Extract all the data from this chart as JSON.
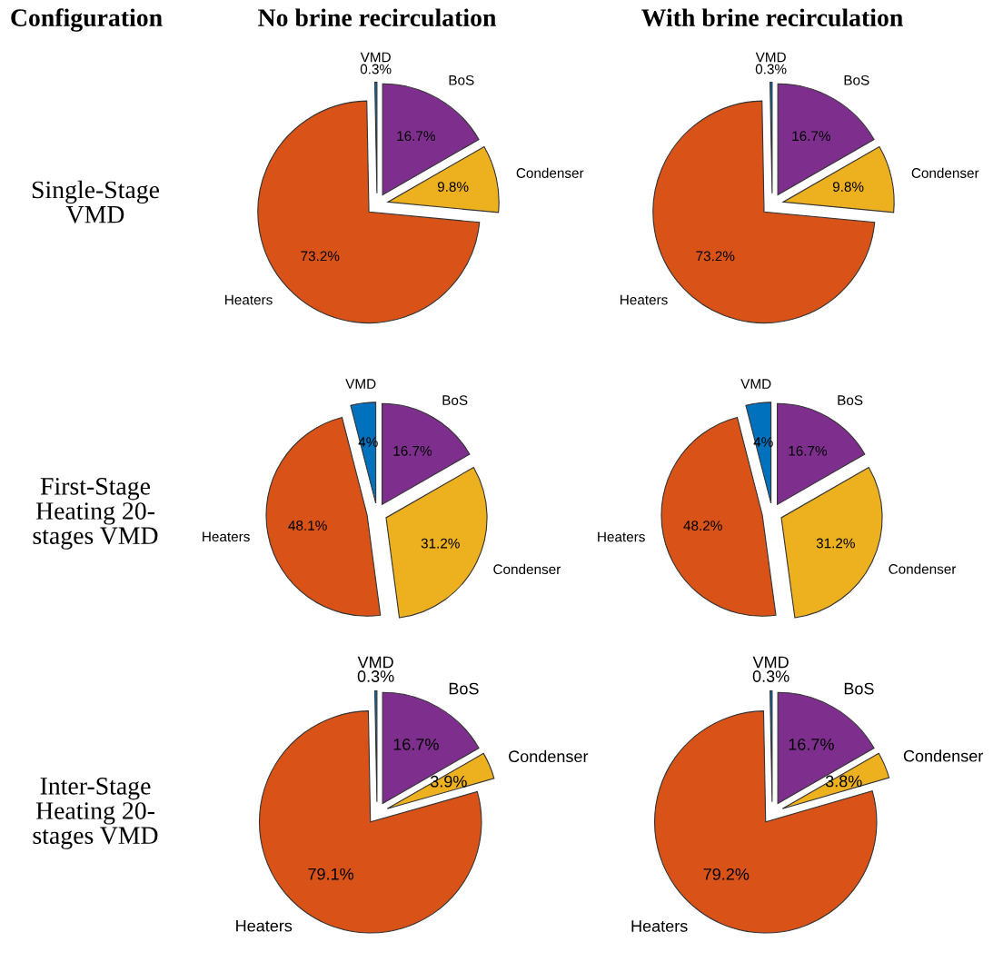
{
  "chart_data": [
    {
      "type": "pie",
      "title": "No brine recirculation",
      "ylabel": "Single-Stage\nVMD",
      "annotations": [
        "Configuration"
      ],
      "categories": [
        "VMD",
        "Heaters",
        "Condenser",
        "BoS"
      ],
      "values": [
        0.3,
        73.2,
        9.8,
        16.7
      ],
      "value_labels": [
        "0.3%",
        "73.2%",
        "9.8%",
        "16.7%"
      ],
      "colors": [
        "#0072bd",
        "#d95319",
        "#edb120",
        "#7e2f8e"
      ]
    },
    {
      "type": "pie",
      "title": "With brine recirculation",
      "categories": [
        "VMD",
        "Heaters",
        "Condenser",
        "BoS"
      ],
      "values": [
        0.3,
        73.2,
        9.8,
        16.7
      ],
      "value_labels": [
        "0.3%",
        "73.2%",
        "9.8%",
        "16.7%"
      ],
      "colors": [
        "#0072bd",
        "#d95319",
        "#edb120",
        "#7e2f8e"
      ]
    },
    {
      "type": "pie",
      "ylabel": "First-Stage\nHeating 20-\nstages VMD",
      "categories": [
        "VMD",
        "Heaters",
        "Condenser",
        "BoS"
      ],
      "values": [
        4,
        48.1,
        31.2,
        16.7
      ],
      "value_labels": [
        "4%",
        "48.1%",
        "31.2%",
        "16.7%"
      ],
      "colors": [
        "#0072bd",
        "#d95319",
        "#edb120",
        "#7e2f8e"
      ]
    },
    {
      "type": "pie",
      "categories": [
        "VMD",
        "Heaters",
        "Condenser",
        "BoS"
      ],
      "values": [
        4,
        48.2,
        31.2,
        16.7
      ],
      "value_labels": [
        "4%",
        "48.2%",
        "31.2%",
        "16.7%"
      ],
      "colors": [
        "#0072bd",
        "#d95319",
        "#edb120",
        "#7e2f8e"
      ]
    },
    {
      "type": "pie",
      "ylabel": "Inter-Stage\nHeating 20-\nstages VMD",
      "categories": [
        "VMD",
        "Heaters",
        "Condenser",
        "BoS"
      ],
      "values": [
        0.3,
        79.1,
        3.9,
        16.7
      ],
      "value_labels": [
        "0.3%",
        "79.1%",
        "3.9%",
        "16.7%"
      ],
      "colors": [
        "#0072bd",
        "#d95319",
        "#edb120",
        "#7e2f8e"
      ]
    },
    {
      "type": "pie",
      "categories": [
        "VMD",
        "Heaters",
        "Condenser",
        "BoS"
      ],
      "values": [
        0.3,
        79.2,
        3.8,
        16.7
      ],
      "value_labels": [
        "0.3%",
        "79.2%",
        "3.8%",
        "16.7%"
      ],
      "colors": [
        "#0072bd",
        "#d95319",
        "#edb120",
        "#7e2f8e"
      ]
    }
  ]
}
